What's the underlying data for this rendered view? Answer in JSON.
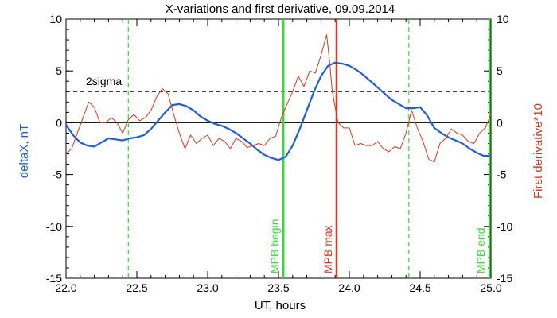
{
  "chart_data": {
    "type": "line",
    "title": "X-variations and first derivative, 09.09.2014",
    "xlabel": "UT, hours",
    "ylabel_left": "deltaX, nT",
    "ylabel_right": "First derivative*10",
    "xlim": [
      22.0,
      25.0
    ],
    "ylim": [
      -15,
      10
    ],
    "x_ticks": [
      22.0,
      22.5,
      23.0,
      23.5,
      24.0,
      24.5,
      25.0
    ],
    "x_tick_labels": [
      "22.0",
      "22.5",
      "23.0",
      "23.5",
      "24.0",
      "24.5",
      "25.0"
    ],
    "y_ticks": [
      10,
      5,
      0,
      -5,
      -10,
      -15
    ],
    "y_tick_labels": [
      "10",
      "5",
      "0",
      "-5",
      "-10",
      "-15"
    ],
    "grid": false,
    "colors": {
      "deltaX": "#1e5fd8",
      "derivative": "#d8361e",
      "green_markers": "#33dd33",
      "red_marker": "#e8321e",
      "axes": "#000000"
    },
    "series": [
      {
        "key": "deltaX",
        "x": [
          22.0,
          22.05,
          22.1,
          22.15,
          22.2,
          22.25,
          22.3,
          22.35,
          22.4,
          22.45,
          22.5,
          22.55,
          22.6,
          22.65,
          22.7,
          22.75,
          22.8,
          22.85,
          22.9,
          22.95,
          23.0,
          23.05,
          23.1,
          23.15,
          23.2,
          23.25,
          23.3,
          23.35,
          23.4,
          23.45,
          23.5,
          23.55,
          23.6,
          23.65,
          23.7,
          23.75,
          23.8,
          23.85,
          23.9,
          23.95,
          24.0,
          24.05,
          24.1,
          24.15,
          24.2,
          24.25,
          24.3,
          24.35,
          24.4,
          24.45,
          24.5,
          24.55,
          24.6,
          24.65,
          24.7,
          24.75,
          24.8,
          24.85,
          24.9,
          24.95,
          25.0
        ],
        "y": [
          -0.2,
          -1.2,
          -1.9,
          -2.2,
          -2.3,
          -1.9,
          -1.5,
          -1.6,
          -1.7,
          -1.5,
          -1.4,
          -1.2,
          -0.6,
          0.2,
          1.0,
          1.7,
          1.8,
          1.6,
          1.2,
          0.6,
          0.2,
          -0.1,
          -0.3,
          -0.6,
          -1.0,
          -1.5,
          -2.0,
          -2.6,
          -3.1,
          -3.4,
          -3.6,
          -3.3,
          -2.2,
          -0.6,
          1.2,
          3.0,
          4.5,
          5.5,
          5.8,
          5.7,
          5.5,
          5.1,
          4.6,
          4.0,
          3.4,
          2.8,
          2.2,
          1.8,
          1.4,
          1.4,
          1.5,
          0.7,
          -0.5,
          -1.0,
          -1.4,
          -1.7,
          -2.0,
          -2.5,
          -2.9,
          -3.2,
          -3.2
        ]
      },
      {
        "key": "derivative",
        "x": [
          22.0,
          22.04,
          22.08,
          22.12,
          22.16,
          22.2,
          22.24,
          22.28,
          22.32,
          22.36,
          22.4,
          22.44,
          22.48,
          22.52,
          22.56,
          22.6,
          22.64,
          22.68,
          22.72,
          22.76,
          22.8,
          22.84,
          22.88,
          22.92,
          22.96,
          23.0,
          23.04,
          23.08,
          23.12,
          23.16,
          23.2,
          23.24,
          23.28,
          23.32,
          23.36,
          23.4,
          23.44,
          23.48,
          23.52,
          23.56,
          23.6,
          23.64,
          23.68,
          23.72,
          23.76,
          23.8,
          23.84,
          23.86,
          23.88,
          23.92,
          23.96,
          24.0,
          24.04,
          24.08,
          24.12,
          24.16,
          24.2,
          24.24,
          24.28,
          24.32,
          24.36,
          24.4,
          24.44,
          24.48,
          24.52,
          24.56,
          24.6,
          24.64,
          24.68,
          24.72,
          24.76,
          24.8,
          24.84,
          24.88,
          24.92,
          24.96,
          25.0
        ],
        "y": [
          -3.0,
          -2.5,
          -1.0,
          0.5,
          2.0,
          1.5,
          0.0,
          0.0,
          0.5,
          0.0,
          -1.0,
          0.3,
          0.8,
          0.2,
          0.5,
          1.2,
          2.5,
          3.3,
          2.8,
          0.8,
          -1.0,
          -2.5,
          -1.2,
          -2.0,
          -1.5,
          -1.2,
          -2.2,
          -1.5,
          -1.8,
          -2.5,
          -1.5,
          -1.8,
          -2.4,
          -2.2,
          -2.0,
          -2.2,
          -1.5,
          -1.3,
          0.5,
          1.8,
          3.0,
          4.5,
          3.5,
          5.0,
          4.8,
          6.5,
          8.5,
          6.0,
          3.0,
          0.0,
          -0.5,
          -0.5,
          -2.2,
          -2.0,
          -2.2,
          -2.2,
          -1.8,
          -2.5,
          -2.8,
          -2.3,
          -2.5,
          -1.0,
          1.2,
          -0.5,
          -1.8,
          -3.5,
          -3.8,
          -2.0,
          -1.5,
          -0.6,
          -1.0,
          -1.2,
          -1.8,
          -2.0,
          -1.0,
          -0.5,
          0.8
        ]
      }
    ],
    "annotations": {
      "sigma_label": "2sigma",
      "sigma_level": 3.0,
      "zero_level": 0,
      "vertical_lines": [
        {
          "x": 22.44,
          "style": "dashed",
          "color": "#33dd33",
          "label": ""
        },
        {
          "x": 23.535,
          "style": "solid",
          "color": "#33dd33",
          "label": "MPB begin"
        },
        {
          "x": 23.91,
          "style": "solid",
          "color": "#e8321e",
          "label": "MPB max"
        },
        {
          "x": 24.42,
          "style": "dashed",
          "color": "#33dd33",
          "label": ""
        },
        {
          "x": 24.99,
          "style": "solid",
          "color": "#33dd33",
          "label": "MPB end"
        }
      ]
    }
  }
}
